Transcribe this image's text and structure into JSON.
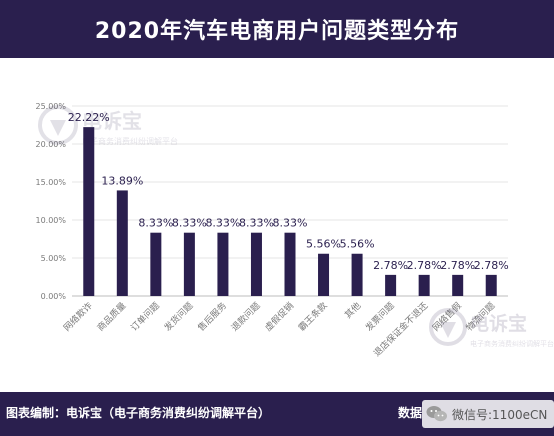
{
  "header": {
    "title": "2020年汽车电商用户问题类型分布"
  },
  "footer": {
    "left_text": "图表编制：电诉宝（电子商务消费纠纷调解平台）",
    "right_text": "数据",
    "wechat_text": "微信号:1100eCN"
  },
  "watermark": {
    "brand": "电诉宝",
    "sub": "电子商务消费纠纷调解平台"
  },
  "colors": {
    "header_bg": "#2a1f4e",
    "bar": "#2a1f4e",
    "axis_text": "#7a7a7a",
    "gridline": "#e6e6e6"
  },
  "chart_data": {
    "type": "bar",
    "categories": [
      "网络欺诈",
      "商品质量",
      "订单问题",
      "发货问题",
      "售后服务",
      "退款问题",
      "虚假促销",
      "霸王条款",
      "其他",
      "发票问题",
      "退店保证金不退还",
      "网络售假",
      "物流问题"
    ],
    "values": [
      22.22,
      13.89,
      8.33,
      8.33,
      8.33,
      8.33,
      8.33,
      5.56,
      5.56,
      2.78,
      2.78,
      2.78,
      2.78
    ],
    "value_labels": [
      "22.22%",
      "13.89%",
      "8.33%",
      "8.33%",
      "8.33%",
      "8.33%",
      "8.33%",
      "5.56%",
      "5.56%",
      "2.78%",
      "2.78%",
      "2.78%",
      "2.78%"
    ],
    "y_ticks": [
      "0.00%",
      "5.00%",
      "10.00%",
      "15.00%",
      "20.00%",
      "25.00%"
    ],
    "ylim": [
      0,
      25
    ],
    "grid": true,
    "title": "2020年汽车电商用户问题类型分布",
    "xlabel": "",
    "ylabel": ""
  }
}
